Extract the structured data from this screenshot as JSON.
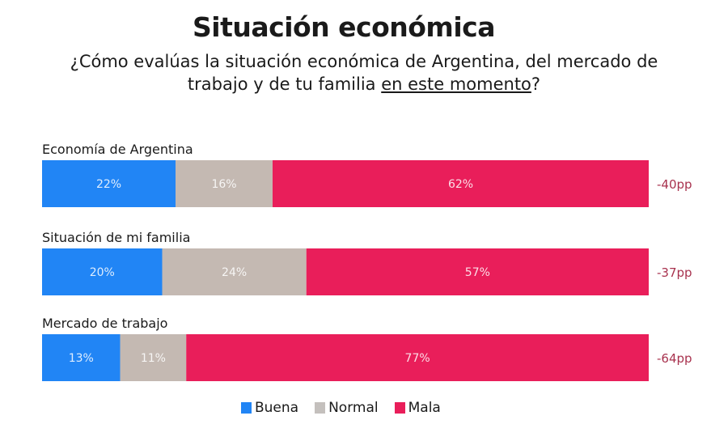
{
  "chart_data": {
    "type": "bar",
    "orientation": "horizontal",
    "stacked": true,
    "title": "Situación económica",
    "subtitle_parts": [
      "¿Cómo evalúas la situación económica de Argentina, del mercado de trabajo y de tu familia ",
      "en este momento",
      "?"
    ],
    "categories": [
      "Economía de Argentina",
      "Situación de mi familia",
      "Mercado de trabajo"
    ],
    "series": [
      {
        "name": "Buena",
        "color": "#2185f5",
        "values": [
          22,
          20,
          13
        ]
      },
      {
        "name": "Normal",
        "color": "#c4b9b2",
        "values": [
          16,
          24,
          11
        ]
      },
      {
        "name": "Mala",
        "color": "#e91e5a",
        "values": [
          62,
          57,
          77
        ]
      }
    ],
    "value_suffix": "%",
    "net_labels": [
      "-40pp",
      "-37pp",
      "-64pp"
    ],
    "net_label_color": "#a8324e",
    "legend_position": "bottom",
    "grid": false
  }
}
